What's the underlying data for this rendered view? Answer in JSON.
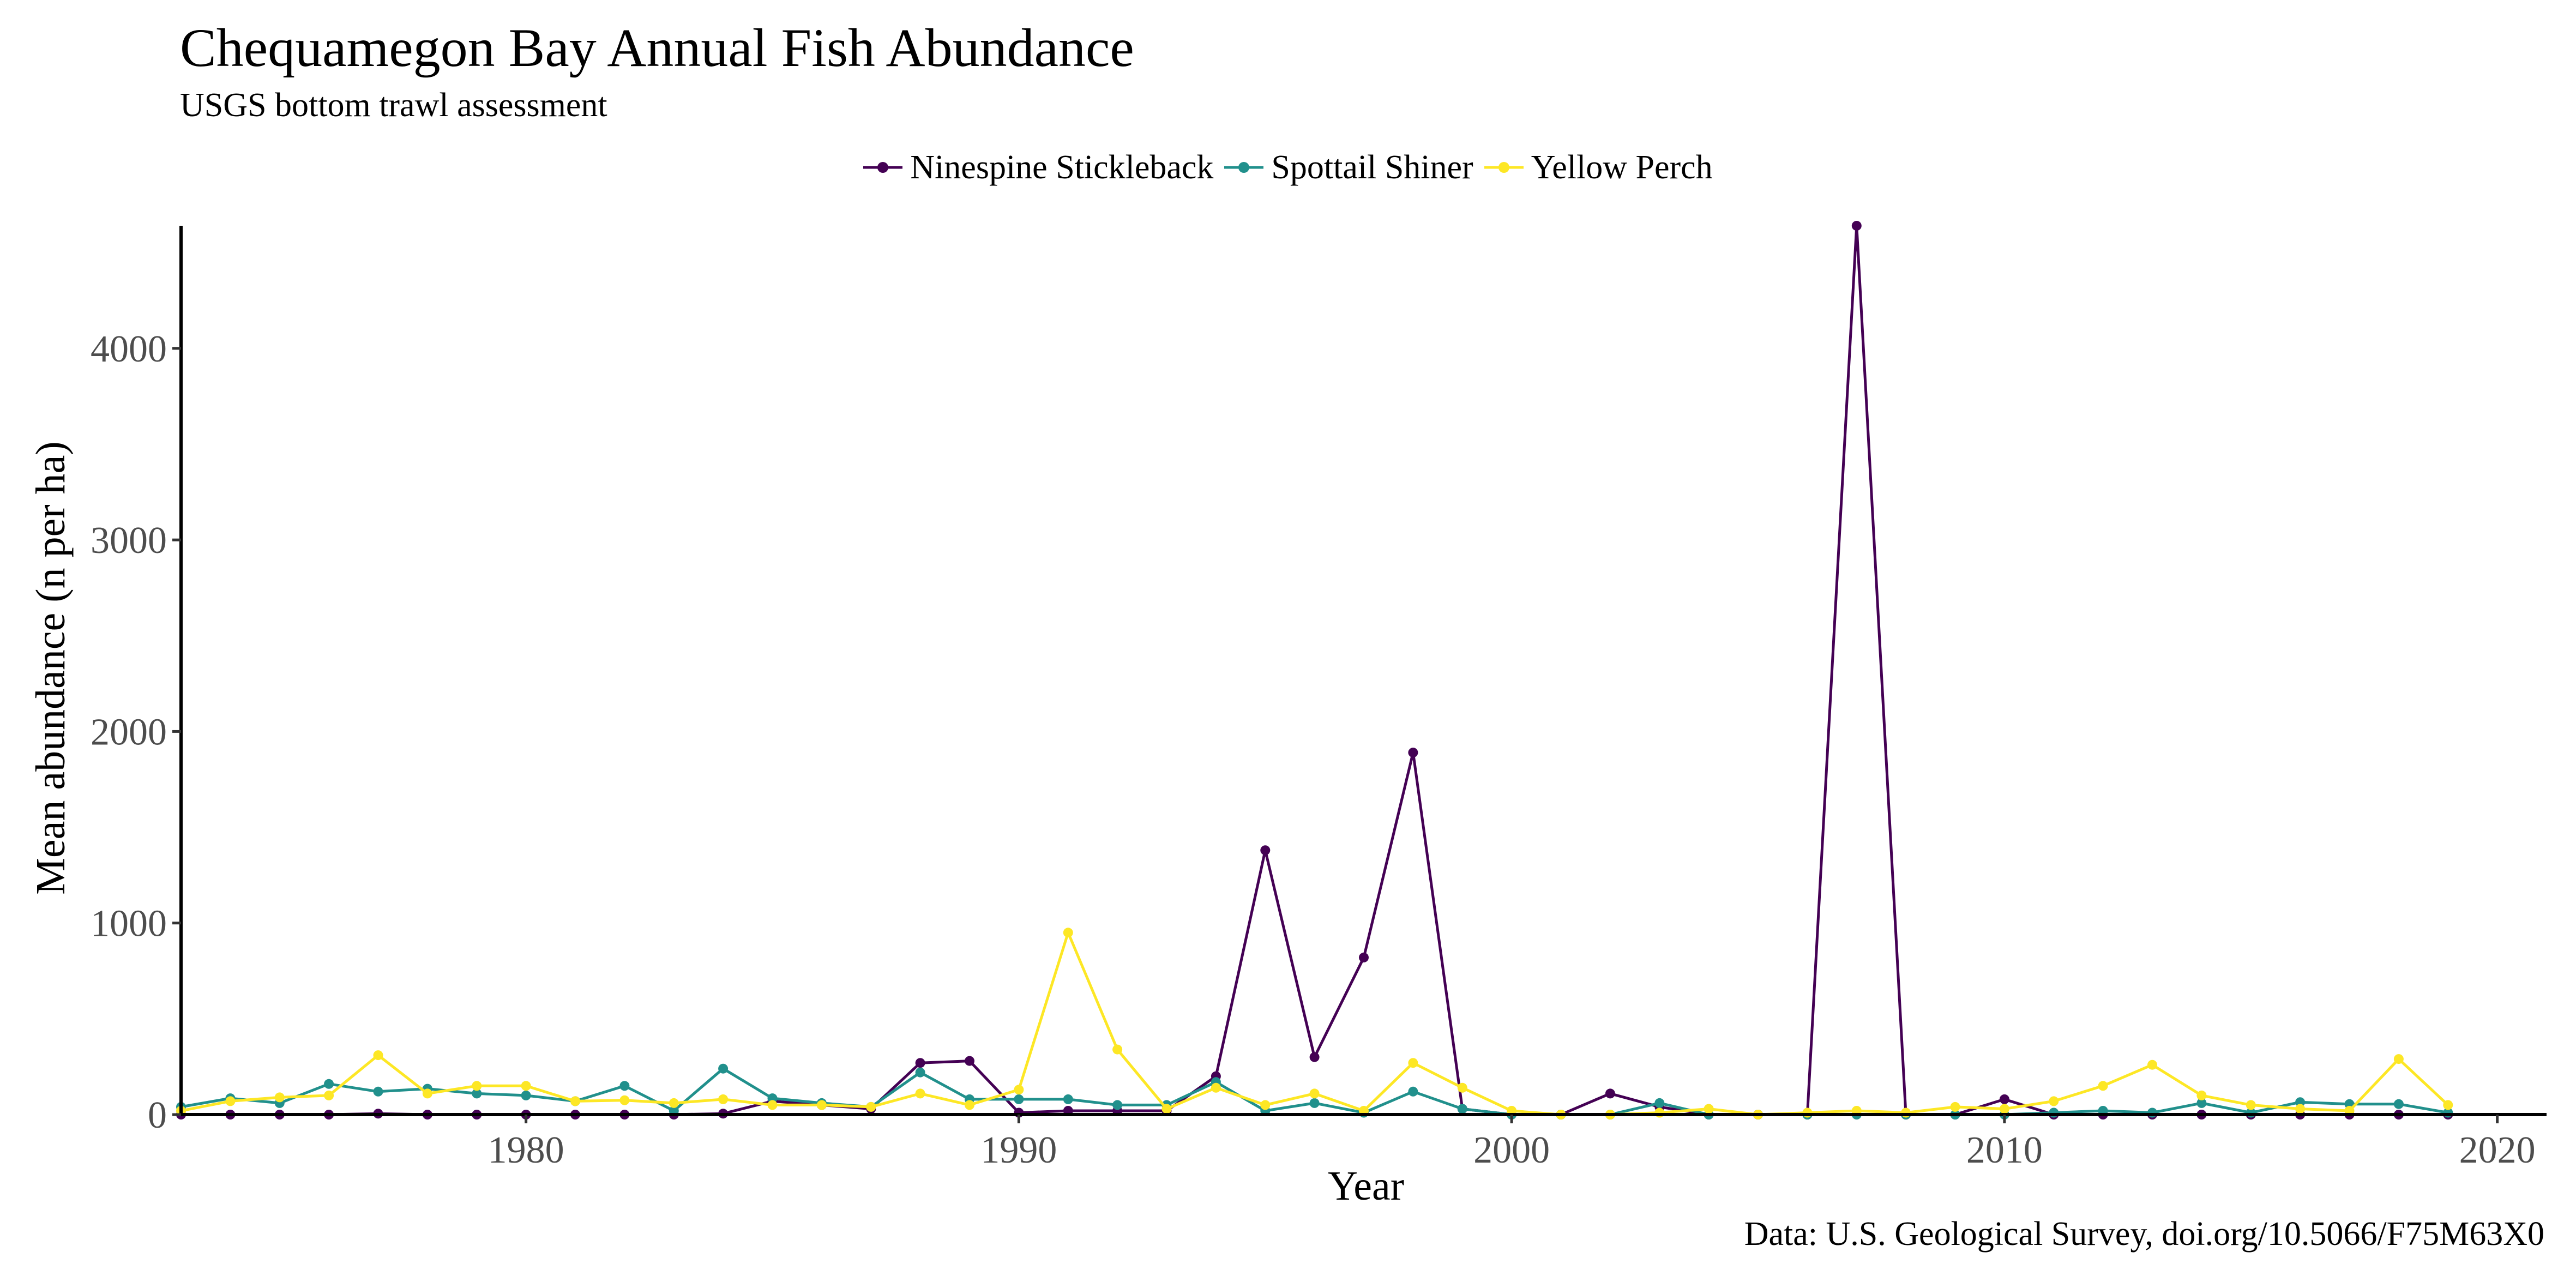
{
  "chart_data": {
    "type": "line",
    "title": "Chequamegon Bay Annual Fish Abundance",
    "subtitle": "USGS bottom trawl assessment",
    "xlabel": "Year",
    "ylabel": "Mean abundance (n per ha)",
    "caption": "Data: U.S. Geological Survey, doi.org/10.5066/F75M63X0",
    "xlim": [
      1973,
      2021
    ],
    "ylim": [
      0,
      4640
    ],
    "x_ticks": [
      1980,
      1990,
      2000,
      2010,
      2020
    ],
    "y_ticks": [
      0,
      1000,
      2000,
      3000,
      4000
    ],
    "grid": false,
    "legend_position": "top",
    "x": [
      1973,
      1974,
      1975,
      1976,
      1977,
      1978,
      1979,
      1980,
      1981,
      1982,
      1983,
      1984,
      1985,
      1986,
      1987,
      1988,
      1989,
      1990,
      1991,
      1992,
      1993,
      1994,
      1995,
      1996,
      1997,
      1998,
      1999,
      2000,
      2001,
      2002,
      2003,
      2004,
      2005,
      2006,
      2007,
      2008,
      2009,
      2010,
      2011,
      2012,
      2013,
      2014,
      2015,
      2016,
      2017,
      2018,
      2019
    ],
    "series": [
      {
        "name": "Ninespine Stickleback",
        "color": "#440154",
        "values": [
          0,
          0,
          0,
          0,
          5,
          0,
          0,
          0,
          0,
          0,
          0,
          5,
          70,
          50,
          30,
          270,
          280,
          10,
          20,
          20,
          20,
          200,
          1380,
          300,
          820,
          1890,
          30,
          0,
          0,
          110,
          40,
          0,
          0,
          0,
          4640,
          0,
          0,
          80,
          0,
          0,
          0,
          0,
          0,
          0,
          0,
          0,
          0
        ]
      },
      {
        "name": "Spottail Shiner",
        "color": "#21908C",
        "values": [
          40,
          85,
          60,
          160,
          120,
          135,
          110,
          100,
          70,
          150,
          20,
          240,
          85,
          60,
          40,
          220,
          80,
          80,
          80,
          50,
          50,
          170,
          20,
          60,
          10,
          120,
          30,
          0,
          0,
          0,
          60,
          0,
          0,
          0,
          0,
          0,
          0,
          0,
          10,
          20,
          10,
          60,
          10,
          65,
          55,
          55,
          10
        ]
      },
      {
        "name": "Yellow Perch",
        "color": "#FDE725",
        "values": [
          20,
          70,
          90,
          100,
          310,
          110,
          150,
          150,
          70,
          75,
          60,
          80,
          50,
          50,
          40,
          110,
          50,
          130,
          950,
          340,
          30,
          140,
          50,
          110,
          20,
          270,
          140,
          20,
          0,
          0,
          10,
          30,
          0,
          10,
          20,
          10,
          40,
          30,
          70,
          150,
          260,
          100,
          50,
          30,
          20,
          290,
          50
        ]
      }
    ]
  }
}
